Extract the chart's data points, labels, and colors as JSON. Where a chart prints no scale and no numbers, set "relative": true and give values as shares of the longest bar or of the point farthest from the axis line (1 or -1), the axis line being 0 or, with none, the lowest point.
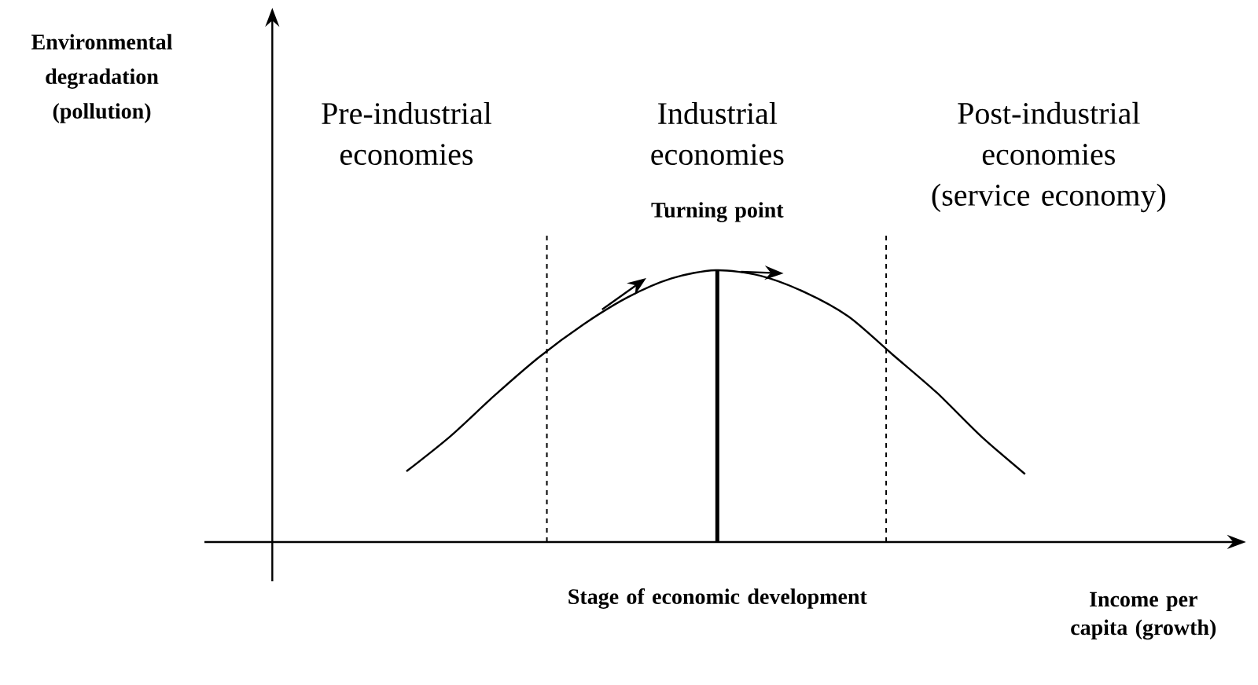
{
  "chart_data": {
    "type": "line",
    "relative": true,
    "categories": [
      null,
      null,
      null,
      null,
      null,
      null,
      null,
      null,
      null,
      null,
      null,
      null,
      null,
      null,
      null
    ],
    "values": [
      0.26,
      0.39,
      0.54,
      0.68,
      0.8,
      0.9,
      0.97,
      1,
      0.98,
      0.92,
      0.83,
      0.69,
      0.55,
      0.39,
      0.25
    ],
    "color": "#000000",
    "xlabel": "Income per capita (growth)",
    "annotations": [
      "Pre-industrial economies",
      "Industrial economies",
      "Post-industrial economies (service economy)",
      "Stage of economic development",
      "Turning point",
      "Environmental degradation (pollution)"
    ]
  }
}
